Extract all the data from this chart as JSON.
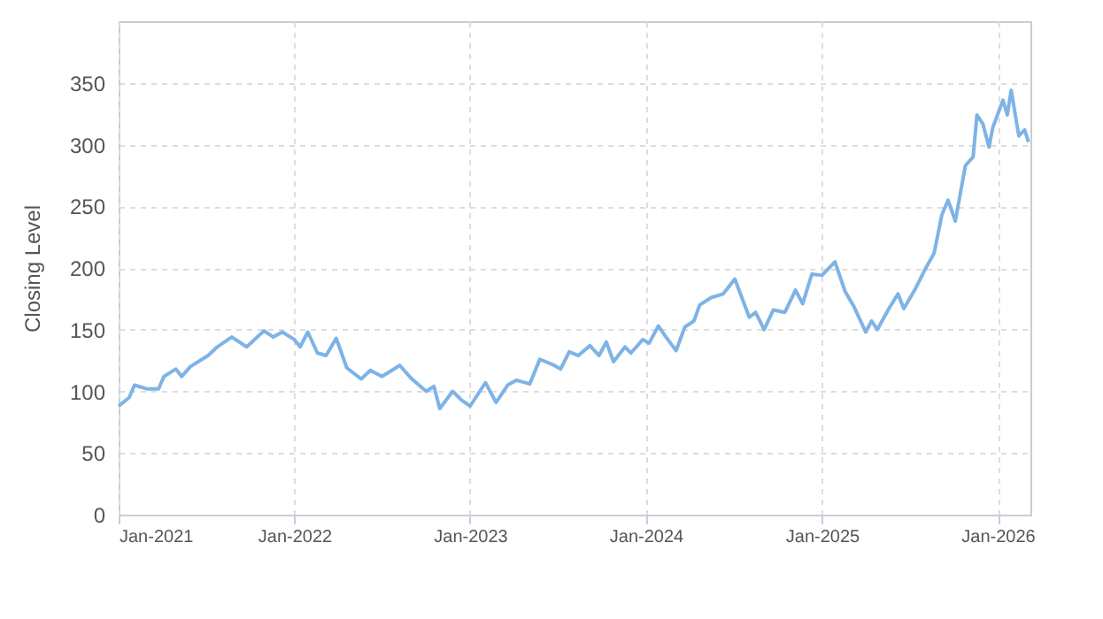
{
  "chart_data": {
    "type": "line",
    "ylabel": "Closing Level",
    "x": [
      "2021-01-01",
      "2021-01-23",
      "2021-02-03",
      "2021-02-28",
      "2021-03-25",
      "2021-04-05",
      "2021-04-30",
      "2021-05-12",
      "2021-05-30",
      "2021-07-06",
      "2021-07-25",
      "2021-08-24",
      "2021-09-24",
      "2021-10-30",
      "2021-11-18",
      "2021-12-07",
      "2022-01-01",
      "2022-01-13",
      "2022-01-29",
      "2022-02-18",
      "2022-03-08",
      "2022-03-29",
      "2022-04-20",
      "2022-05-20",
      "2022-06-08",
      "2022-07-02",
      "2022-08-08",
      "2022-09-02",
      "2022-10-02",
      "2022-10-18",
      "2022-10-30",
      "2022-11-26",
      "2022-12-14",
      "2023-01-01",
      "2023-02-02",
      "2023-02-24",
      "2023-03-20",
      "2023-04-07",
      "2023-05-05",
      "2023-05-26",
      "2023-06-25",
      "2023-07-08",
      "2023-07-26",
      "2023-08-14",
      "2023-09-07",
      "2023-09-26",
      "2023-10-11",
      "2023-10-26",
      "2023-11-19",
      "2023-12-01",
      "2023-12-26",
      "2024-01-08",
      "2024-01-27",
      "2024-02-12",
      "2024-03-04",
      "2024-03-22",
      "2024-04-10",
      "2024-04-22",
      "2024-05-16",
      "2024-06-10",
      "2024-07-04",
      "2024-08-03",
      "2024-08-16",
      "2024-09-03",
      "2024-09-22",
      "2024-10-16",
      "2024-11-07",
      "2024-11-22",
      "2024-12-11",
      "2025-01-01",
      "2025-01-28",
      "2025-02-18",
      "2025-03-08",
      "2025-04-02",
      "2025-04-14",
      "2025-04-26",
      "2025-05-20",
      "2025-06-08",
      "2025-06-20",
      "2025-07-14",
      "2025-08-02",
      "2025-08-22",
      "2025-09-07",
      "2025-09-20",
      "2025-10-05",
      "2025-10-26",
      "2025-11-11",
      "2025-11-19",
      "2025-12-01",
      "2025-12-14",
      "2025-12-22",
      "2026-01-12",
      "2026-01-21",
      "2026-01-29",
      "2026-02-14",
      "2026-02-26",
      "2026-03-06"
    ],
    "series": [
      {
        "color": "#7eb3e6",
        "values": [
          88,
          95,
          105,
          102,
          102,
          112,
          118,
          112,
          120,
          129,
          136,
          144,
          136,
          149,
          144,
          148,
          142,
          136,
          148,
          131,
          129,
          143,
          119,
          110,
          117,
          112,
          121,
          110,
          100,
          104,
          86,
          100,
          93,
          88,
          107,
          91,
          105,
          109,
          106,
          126,
          121,
          118,
          132,
          129,
          137,
          129,
          140,
          124,
          136,
          131,
          142,
          139,
          153,
          144,
          133,
          152,
          157,
          170,
          176,
          179,
          191,
          160,
          164,
          150,
          166,
          164,
          182,
          171,
          195,
          194,
          205,
          181,
          169,
          148,
          157,
          150,
          167,
          179,
          167,
          183,
          198,
          212,
          243,
          255,
          238,
          283,
          290,
          324,
          317,
          298,
          314,
          336,
          324,
          344,
          307,
          312,
          302
        ]
      }
    ],
    "xlim": [
      "2021-01-01",
      "2026-03-10"
    ],
    "xticks": [
      {
        "value": "2021-01-01",
        "label": "Jan-2021"
      },
      {
        "value": "2022-01-01",
        "label": "Jan-2022"
      },
      {
        "value": "2023-01-01",
        "label": "Jan-2023"
      },
      {
        "value": "2024-01-01",
        "label": "Jan-2024"
      },
      {
        "value": "2025-01-01",
        "label": "Jan-2025"
      },
      {
        "value": "2026-01-01",
        "label": "Jan-2026"
      }
    ],
    "ylim": [
      0,
      400
    ],
    "yticks": [
      0,
      50,
      100,
      150,
      200,
      250,
      300,
      350
    ],
    "grid": true,
    "marker": "none",
    "line_style": "solid"
  }
}
